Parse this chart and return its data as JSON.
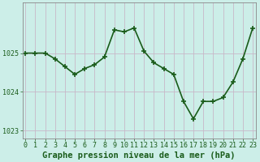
{
  "x": [
    0,
    1,
    2,
    3,
    4,
    5,
    6,
    7,
    8,
    9,
    10,
    11,
    12,
    13,
    14,
    15,
    16,
    17,
    18,
    19,
    20,
    21,
    22,
    23
  ],
  "y": [
    1025.0,
    1025.0,
    1025.0,
    1024.85,
    1024.65,
    1024.45,
    1024.6,
    1024.7,
    1024.9,
    1025.6,
    1025.55,
    1025.65,
    1025.05,
    1024.75,
    1024.6,
    1024.45,
    1023.75,
    1023.3,
    1023.75,
    1023.75,
    1023.85,
    1024.25,
    1024.85,
    1025.65
  ],
  "line_color": "#1a5c1a",
  "marker": "+",
  "marker_size": 5,
  "line_width": 1.2,
  "bg_color": "#cceee8",
  "grid_color": "#c8b8c8",
  "xlabel": "Graphe pression niveau de la mer (hPa)",
  "xlabel_color": "#1a5c1a",
  "tick_color": "#1a5c1a",
  "ylim": [
    1022.8,
    1026.3
  ],
  "yticks": [
    1023,
    1024,
    1025
  ],
  "xticks": [
    0,
    1,
    2,
    3,
    4,
    5,
    6,
    7,
    8,
    9,
    10,
    11,
    12,
    13,
    14,
    15,
    16,
    17,
    18,
    19,
    20,
    21,
    22,
    23
  ],
  "tick_fontsize": 6.0,
  "xlabel_fontsize": 7.5
}
